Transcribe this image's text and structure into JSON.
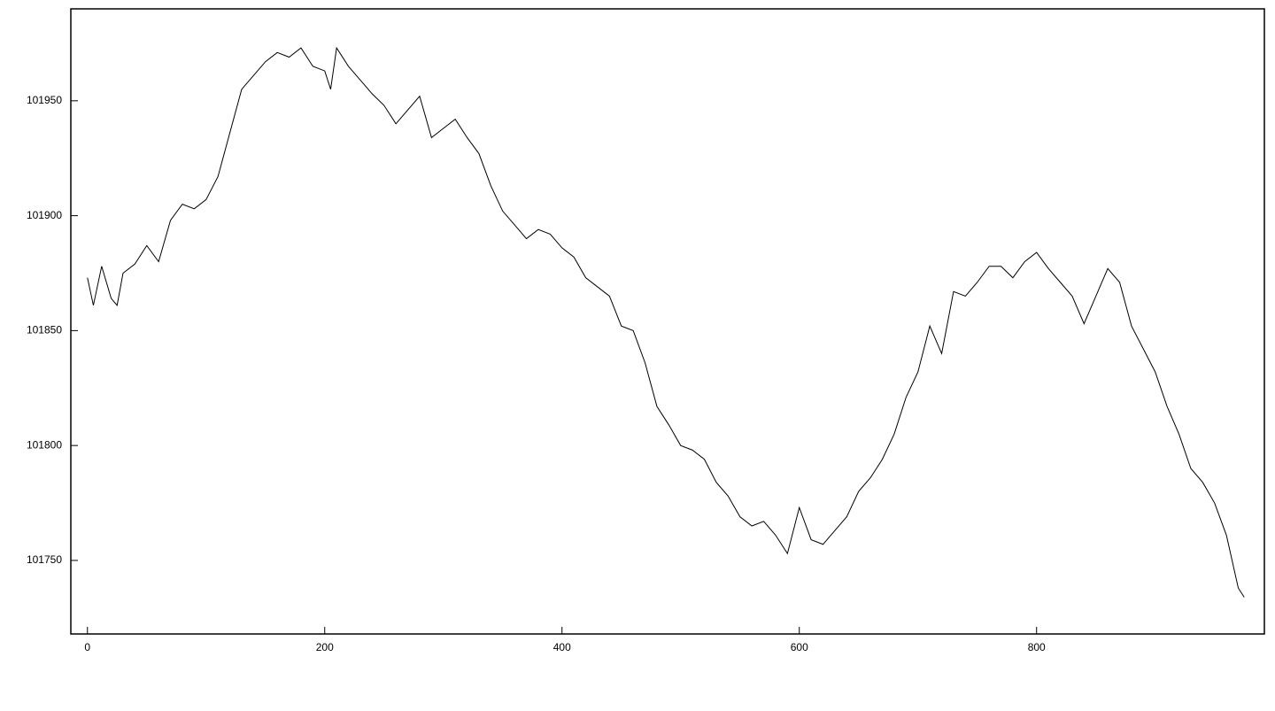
{
  "chart_data": {
    "type": "line",
    "color": "#000000",
    "x": [
      0,
      5,
      12,
      20,
      25,
      30,
      40,
      50,
      60,
      70,
      80,
      90,
      100,
      110,
      120,
      130,
      140,
      150,
      160,
      170,
      180,
      190,
      200,
      205,
      210,
      220,
      230,
      240,
      250,
      260,
      270,
      280,
      290,
      300,
      310,
      320,
      330,
      340,
      350,
      360,
      370,
      380,
      390,
      400,
      410,
      420,
      430,
      440,
      450,
      460,
      470,
      480,
      490,
      500,
      510,
      520,
      530,
      540,
      550,
      560,
      570,
      580,
      590,
      600,
      610,
      620,
      630,
      640,
      650,
      660,
      670,
      680,
      690,
      700,
      710,
      720,
      730,
      740,
      750,
      760,
      770,
      780,
      790,
      800,
      810,
      820,
      830,
      840,
      850,
      860,
      870,
      880,
      890,
      900,
      910,
      920,
      930,
      940,
      950,
      960,
      970,
      975
    ],
    "values": [
      101873,
      101861,
      101878,
      101864,
      101861,
      101875,
      101879,
      101887,
      101880,
      101898,
      101905,
      101903,
      101907,
      101917,
      101936,
      101955,
      101961,
      101967,
      101971,
      101969,
      101973,
      101965,
      101963,
      101955,
      101973,
      101965,
      101959,
      101953,
      101948,
      101940,
      101946,
      101952,
      101934,
      101938,
      101942,
      101934,
      101927,
      101913,
      101902,
      101896,
      101890,
      101894,
      101892,
      101886,
      101882,
      101873,
      101869,
      101865,
      101852,
      101850,
      101836,
      101817,
      101809,
      101800,
      101798,
      101794,
      101784,
      101778,
      101769,
      101765,
      101767,
      101761,
      101753,
      101773,
      101759,
      101757,
      101763,
      101769,
      101780,
      101786,
      101794,
      101805,
      101821,
      101832,
      101852,
      101840,
      101867,
      101865,
      101871,
      101878,
      101878,
      101873,
      101880,
      101884,
      101877,
      101871,
      101865,
      101853,
      101865,
      101877,
      101871,
      101852,
      101842,
      101832,
      101817,
      101805,
      101790,
      101784,
      101775,
      101761,
      101738,
      101734
    ],
    "xlim": [
      -14,
      992
    ],
    "ylim": [
      101718,
      101990
    ],
    "xticks": [
      0,
      200,
      400,
      600,
      800
    ],
    "yticks": [
      101750,
      101800,
      101850,
      101900,
      101950
    ]
  }
}
